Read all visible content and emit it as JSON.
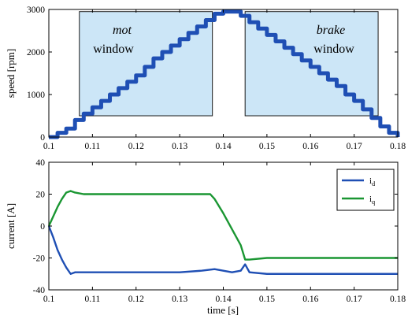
{
  "chart_data": [
    {
      "type": "line",
      "panel": "top",
      "xlabel": "",
      "ylabel": "speed [rpm]",
      "xlim": [
        0.1,
        0.18
      ],
      "ylim": [
        0,
        3000
      ],
      "xticks": [
        0.1,
        0.11,
        0.12,
        0.13,
        0.14,
        0.15,
        0.16,
        0.17,
        0.18
      ],
      "xtick_labels": [
        "0.1",
        "0.11",
        "0.12",
        "0.13",
        "0.14",
        "0.15",
        "0.16",
        "0.17",
        "0.18"
      ],
      "yticks": [
        0,
        1000,
        2000,
        3000
      ],
      "ytick_labels": [
        "0",
        "1000",
        "2000",
        "3000"
      ],
      "grid": false,
      "series": [
        {
          "color": "#1f4fb4",
          "x": [
            0.1,
            0.102,
            0.104,
            0.106,
            0.108,
            0.11,
            0.112,
            0.114,
            0.116,
            0.118,
            0.12,
            0.122,
            0.124,
            0.126,
            0.128,
            0.13,
            0.132,
            0.134,
            0.136,
            0.138,
            0.14,
            0.142,
            0.144,
            0.146,
            0.148,
            0.15,
            0.152,
            0.154,
            0.156,
            0.158,
            0.16,
            0.162,
            0.164,
            0.166,
            0.168,
            0.17,
            0.172,
            0.174,
            0.176,
            0.178,
            0.18
          ],
          "y": [
            0,
            100,
            200,
            400,
            550,
            700,
            850,
            1000,
            1150,
            1300,
            1450,
            1650,
            1850,
            2000,
            2150,
            2300,
            2450,
            2600,
            2750,
            2900,
            2950,
            2950,
            2850,
            2700,
            2550,
            2400,
            2250,
            2100,
            1950,
            1800,
            1650,
            1500,
            1350,
            1200,
            1000,
            850,
            650,
            450,
            250,
            100,
            0
          ]
        }
      ],
      "annotations": [
        {
          "text": "mot",
          "style": "italic"
        },
        {
          "text": "window"
        },
        {
          "text": "brake",
          "style": "italic"
        },
        {
          "text": "window"
        }
      ],
      "windows": [
        {
          "name": "mot window",
          "x": [
            0.107,
            0.1375
          ],
          "y": [
            500,
            2950
          ],
          "fill": "#cce6f7"
        },
        {
          "name": "brake window",
          "x": [
            0.145,
            0.1755
          ],
          "y": [
            500,
            2950
          ],
          "fill": "#cce6f7"
        }
      ]
    },
    {
      "type": "line",
      "panel": "bottom",
      "xlabel": "time [s]",
      "ylabel": "current [A]",
      "xlim": [
        0.1,
        0.18
      ],
      "ylim": [
        -40,
        40
      ],
      "xticks": [
        0.1,
        0.11,
        0.12,
        0.13,
        0.14,
        0.15,
        0.16,
        0.17,
        0.18
      ],
      "xtick_labels": [
        "0.1",
        "0.11",
        "0.12",
        "0.13",
        "0.14",
        "0.15",
        "0.16",
        "0.17",
        "0.18"
      ],
      "yticks": [
        -40,
        -20,
        0,
        20,
        40
      ],
      "ytick_labels": [
        "-40",
        "-20",
        "0",
        "20",
        "40"
      ],
      "grid": false,
      "legend": "top-right",
      "series": [
        {
          "name": "i",
          "subscript": "d",
          "color": "#1f4fb4",
          "x": [
            0.1,
            0.101,
            0.102,
            0.103,
            0.104,
            0.105,
            0.106,
            0.11,
            0.12,
            0.13,
            0.135,
            0.138,
            0.14,
            0.142,
            0.144,
            0.145,
            0.146,
            0.15,
            0.16,
            0.17,
            0.18
          ],
          "y": [
            0,
            -7,
            -15,
            -21,
            -26,
            -30,
            -29,
            -29,
            -29,
            -29,
            -28,
            -27,
            -28,
            -29,
            -28,
            -24,
            -29,
            -30,
            -30,
            -30,
            -30
          ]
        },
        {
          "name": "i",
          "subscript": "q",
          "color": "#1a9632",
          "x": [
            0.1,
            0.101,
            0.102,
            0.103,
            0.104,
            0.105,
            0.106,
            0.108,
            0.11,
            0.12,
            0.13,
            0.137,
            0.138,
            0.14,
            0.142,
            0.144,
            0.145,
            0.146,
            0.15,
            0.16,
            0.17,
            0.18
          ],
          "y": [
            0,
            6,
            12,
            17,
            21,
            22,
            21,
            20,
            20,
            20,
            20,
            20,
            17,
            8,
            -2,
            -12,
            -21,
            -21,
            -20,
            -20,
            -20,
            -20
          ]
        }
      ]
    }
  ]
}
